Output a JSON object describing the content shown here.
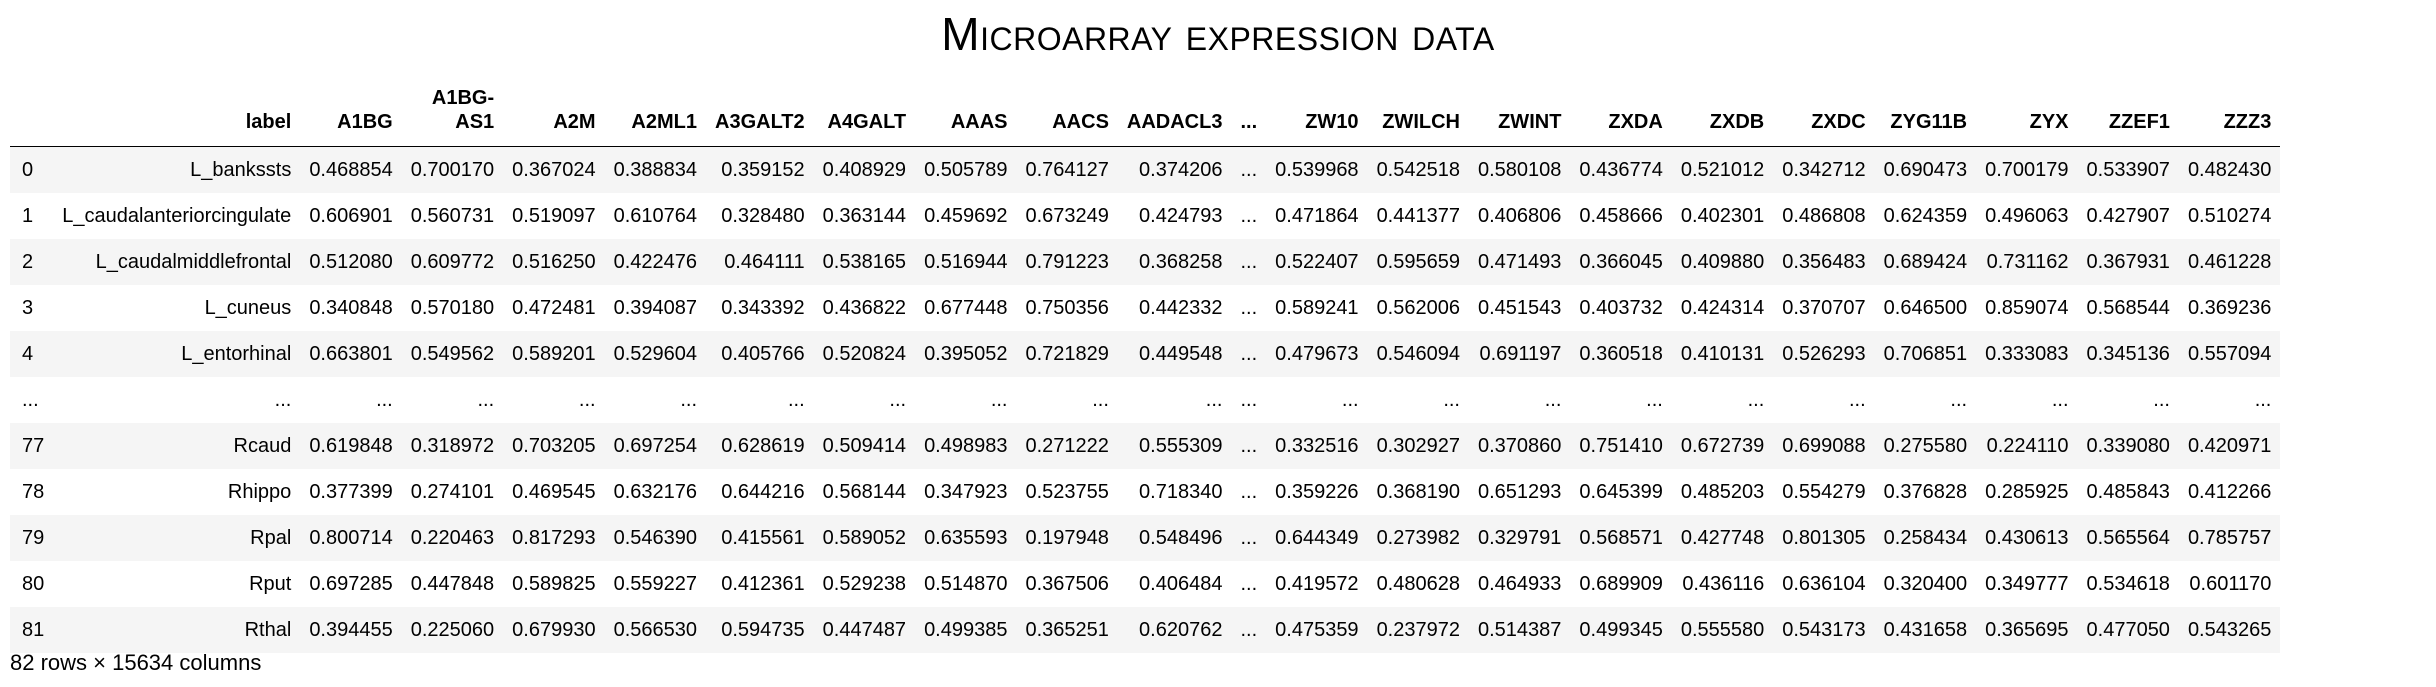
{
  "title": "Microarray expression data",
  "table": {
    "index_header": "",
    "columns": [
      "label",
      "A1BG",
      "A1BG-AS1",
      "A2M",
      "A2ML1",
      "A3GALT2",
      "A4GALT",
      "AAAS",
      "AACS",
      "AADACL3",
      "...",
      "ZW10",
      "ZWILCH",
      "ZWINT",
      "ZXDA",
      "ZXDB",
      "ZXDC",
      "ZYG11B",
      "ZYX",
      "ZZEF1",
      "ZZZ3"
    ],
    "rows": [
      {
        "index": "0",
        "cells": [
          "L_bankssts",
          "0.468854",
          "0.700170",
          "0.367024",
          "0.388834",
          "0.359152",
          "0.408929",
          "0.505789",
          "0.764127",
          "0.374206",
          "...",
          "0.539968",
          "0.542518",
          "0.580108",
          "0.436774",
          "0.521012",
          "0.342712",
          "0.690473",
          "0.700179",
          "0.533907",
          "0.482430"
        ]
      },
      {
        "index": "1",
        "cells": [
          "L_caudalanteriorcingulate",
          "0.606901",
          "0.560731",
          "0.519097",
          "0.610764",
          "0.328480",
          "0.363144",
          "0.459692",
          "0.673249",
          "0.424793",
          "...",
          "0.471864",
          "0.441377",
          "0.406806",
          "0.458666",
          "0.402301",
          "0.486808",
          "0.624359",
          "0.496063",
          "0.427907",
          "0.510274"
        ]
      },
      {
        "index": "2",
        "cells": [
          "L_caudalmiddlefrontal",
          "0.512080",
          "0.609772",
          "0.516250",
          "0.422476",
          "0.464111",
          "0.538165",
          "0.516944",
          "0.791223",
          "0.368258",
          "...",
          "0.522407",
          "0.595659",
          "0.471493",
          "0.366045",
          "0.409880",
          "0.356483",
          "0.689424",
          "0.731162",
          "0.367931",
          "0.461228"
        ]
      },
      {
        "index": "3",
        "cells": [
          "L_cuneus",
          "0.340848",
          "0.570180",
          "0.472481",
          "0.394087",
          "0.343392",
          "0.436822",
          "0.677448",
          "0.750356",
          "0.442332",
          "...",
          "0.589241",
          "0.562006",
          "0.451543",
          "0.403732",
          "0.424314",
          "0.370707",
          "0.646500",
          "0.859074",
          "0.568544",
          "0.369236"
        ]
      },
      {
        "index": "4",
        "cells": [
          "L_entorhinal",
          "0.663801",
          "0.549562",
          "0.589201",
          "0.529604",
          "0.405766",
          "0.520824",
          "0.395052",
          "0.721829",
          "0.449548",
          "...",
          "0.479673",
          "0.546094",
          "0.691197",
          "0.360518",
          "0.410131",
          "0.526293",
          "0.706851",
          "0.333083",
          "0.345136",
          "0.557094"
        ]
      },
      {
        "index": "...",
        "cells": [
          "...",
          "...",
          "...",
          "...",
          "...",
          "...",
          "...",
          "...",
          "...",
          "...",
          "...",
          "...",
          "...",
          "...",
          "...",
          "...",
          "...",
          "...",
          "...",
          "...",
          "..."
        ]
      },
      {
        "index": "77",
        "cells": [
          "Rcaud",
          "0.619848",
          "0.318972",
          "0.703205",
          "0.697254",
          "0.628619",
          "0.509414",
          "0.498983",
          "0.271222",
          "0.555309",
          "...",
          "0.332516",
          "0.302927",
          "0.370860",
          "0.751410",
          "0.672739",
          "0.699088",
          "0.275580",
          "0.224110",
          "0.339080",
          "0.420971"
        ]
      },
      {
        "index": "78",
        "cells": [
          "Rhippo",
          "0.377399",
          "0.274101",
          "0.469545",
          "0.632176",
          "0.644216",
          "0.568144",
          "0.347923",
          "0.523755",
          "0.718340",
          "...",
          "0.359226",
          "0.368190",
          "0.651293",
          "0.645399",
          "0.485203",
          "0.554279",
          "0.376828",
          "0.285925",
          "0.485843",
          "0.412266"
        ]
      },
      {
        "index": "79",
        "cells": [
          "Rpal",
          "0.800714",
          "0.220463",
          "0.817293",
          "0.546390",
          "0.415561",
          "0.589052",
          "0.635593",
          "0.197948",
          "0.548496",
          "...",
          "0.644349",
          "0.273982",
          "0.329791",
          "0.568571",
          "0.427748",
          "0.801305",
          "0.258434",
          "0.430613",
          "0.565564",
          "0.785757"
        ]
      },
      {
        "index": "80",
        "cells": [
          "Rput",
          "0.697285",
          "0.447848",
          "0.589825",
          "0.559227",
          "0.412361",
          "0.529238",
          "0.514870",
          "0.367506",
          "0.406484",
          "...",
          "0.419572",
          "0.480628",
          "0.464933",
          "0.689909",
          "0.436116",
          "0.636104",
          "0.320400",
          "0.349777",
          "0.534618",
          "0.601170"
        ]
      },
      {
        "index": "81",
        "cells": [
          "Rthal",
          "0.394455",
          "0.225060",
          "0.679930",
          "0.566530",
          "0.594735",
          "0.447487",
          "0.499385",
          "0.365251",
          "0.620762",
          "...",
          "0.475359",
          "0.237972",
          "0.514387",
          "0.499345",
          "0.555580",
          "0.543173",
          "0.431658",
          "0.365695",
          "0.477050",
          "0.543265"
        ]
      }
    ]
  },
  "footer": "82 rows × 15634 columns"
}
